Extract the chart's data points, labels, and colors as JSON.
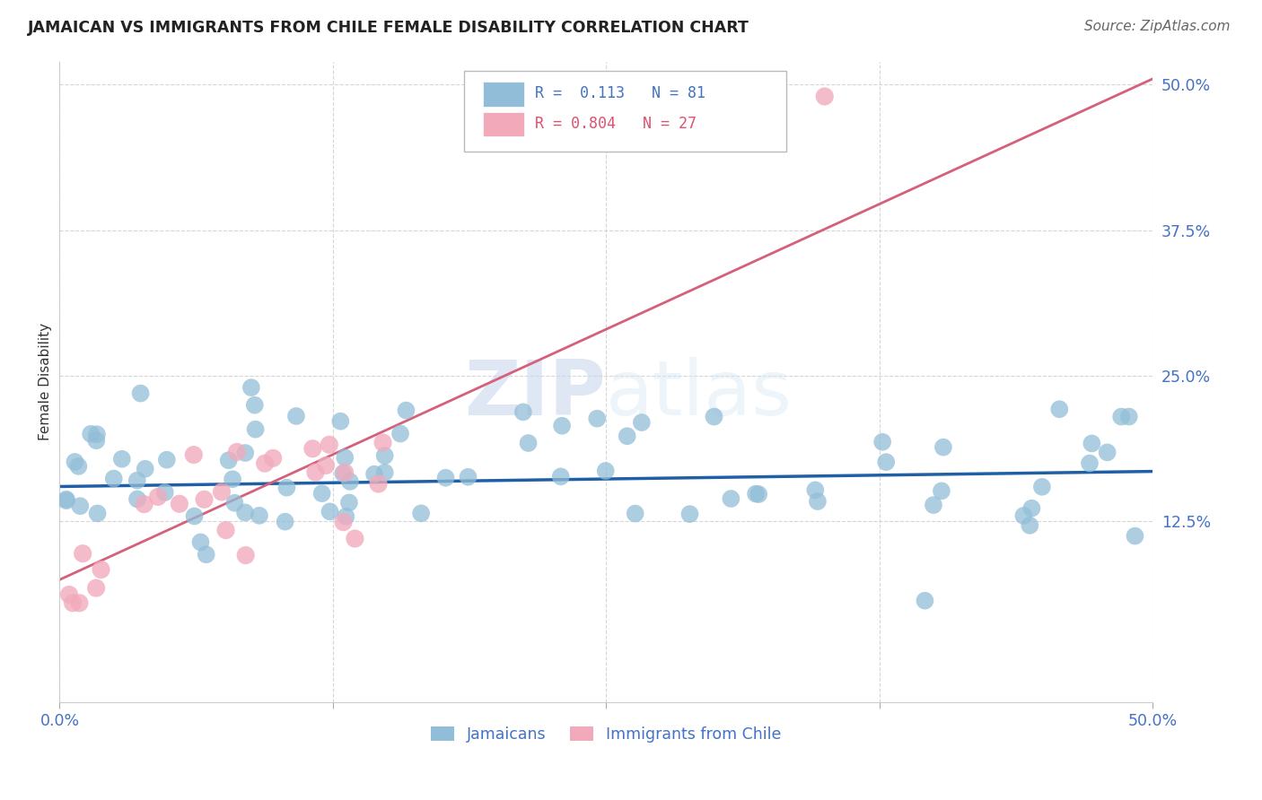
{
  "title": "JAMAICAN VS IMMIGRANTS FROM CHILE FEMALE DISABILITY CORRELATION CHART",
  "source": "Source: ZipAtlas.com",
  "ylabel": "Female Disability",
  "watermark_zip": "ZIP",
  "watermark_atlas": "atlas",
  "xlim": [
    0.0,
    0.5
  ],
  "ylim": [
    -0.03,
    0.52
  ],
  "jamaicans_R": 0.113,
  "jamaicans_N": 81,
  "chile_R": 0.804,
  "chile_N": 27,
  "jamaicans_color": "#92BDD8",
  "chile_color": "#F2AABB",
  "line_jamaicans_color": "#1F5FA6",
  "line_chile_color": "#D4607A",
  "legend_label_jamaicans": "Jamaicans",
  "legend_label_chile": "Immigrants from Chile",
  "line_j_x0": 0.0,
  "line_j_y0": 0.155,
  "line_j_x1": 0.5,
  "line_j_y1": 0.168,
  "line_c_x0": 0.0,
  "line_c_y0": 0.075,
  "line_c_x1": 0.5,
  "line_c_y1": 0.505
}
